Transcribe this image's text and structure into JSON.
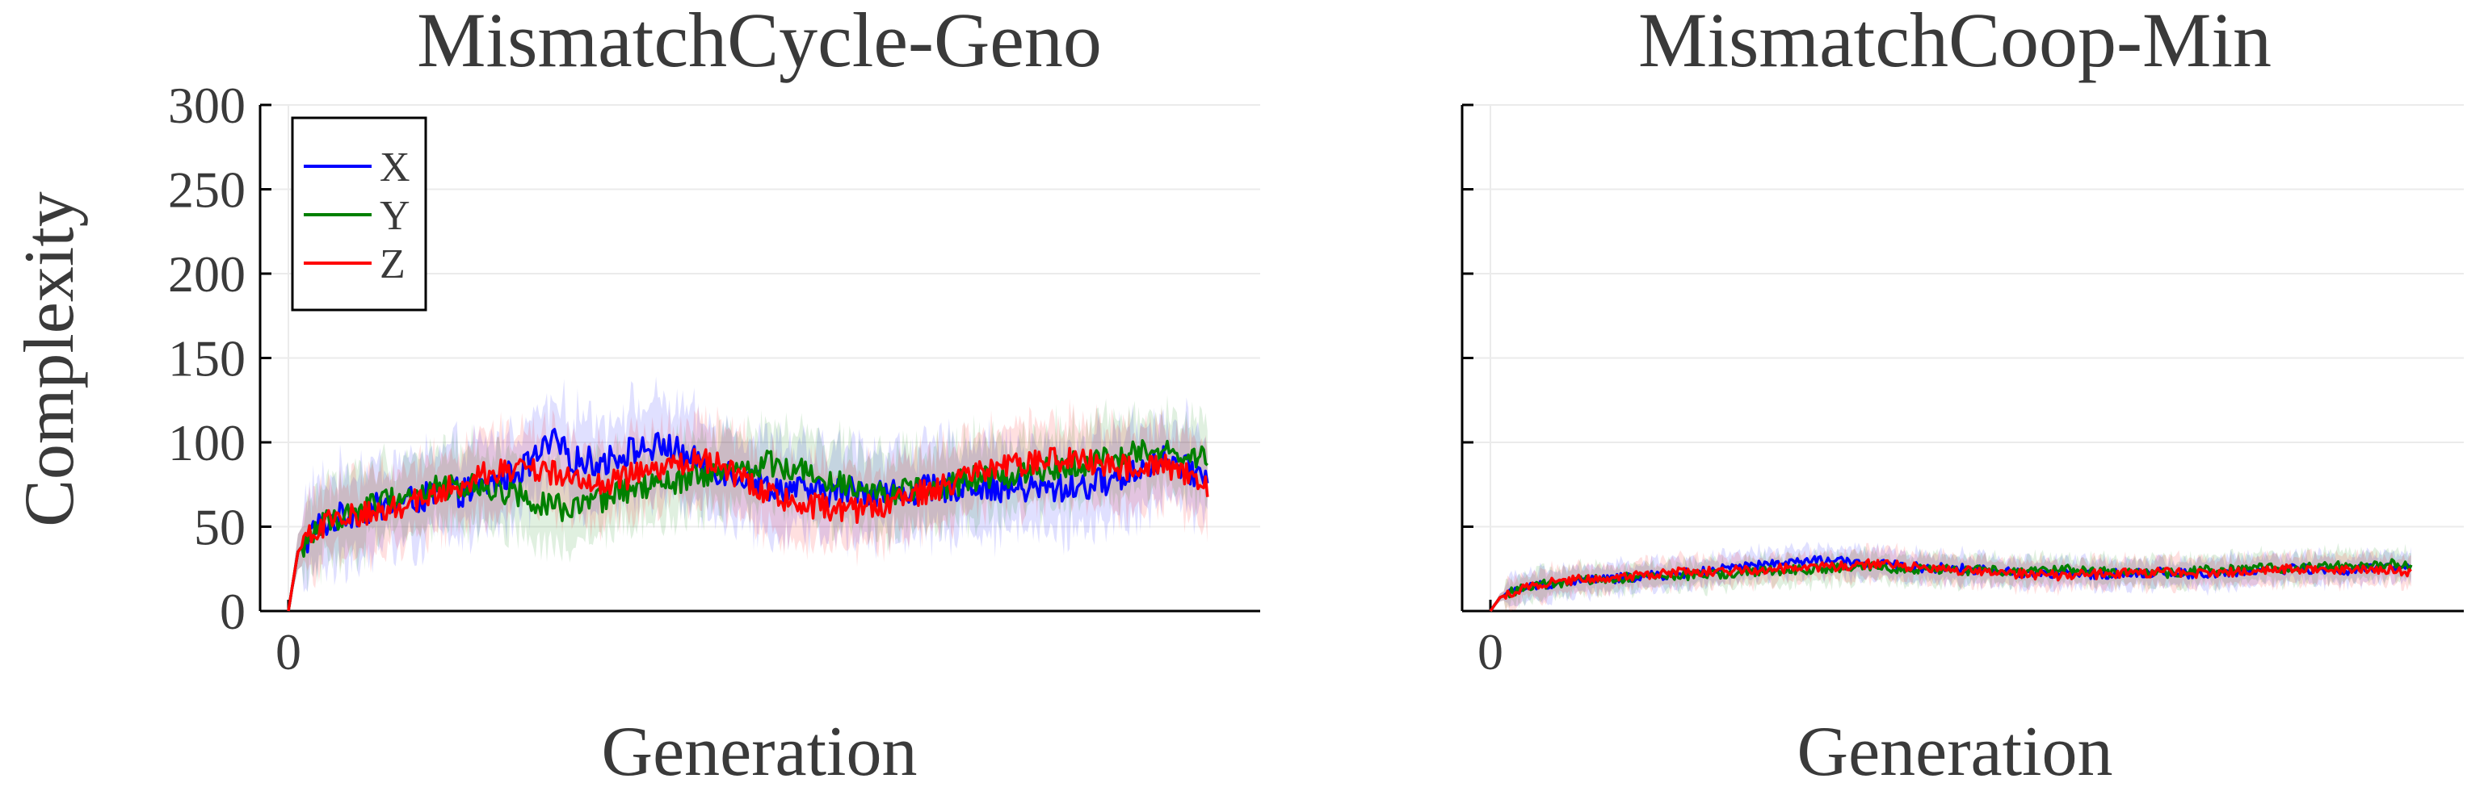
{
  "chart_data": [
    {
      "type": "line",
      "title": "MismatchCycle-Geno",
      "xlabel": "Generation",
      "ylabel": "Complexity",
      "xticks": [
        "0"
      ],
      "yticks": [
        0,
        50,
        100,
        150,
        200,
        250,
        300
      ],
      "xlim": [
        0,
        1000
      ],
      "ylim": [
        0,
        300
      ],
      "grid": true,
      "legend": "top-left",
      "series": [
        {
          "name": "X",
          "color": "#0000ff",
          "x": [
            0,
            10,
            30,
            60,
            100,
            150,
            200,
            250,
            280,
            300,
            330,
            360,
            400,
            440,
            470,
            500,
            530,
            560,
            600,
            640,
            680,
            720,
            760,
            800,
            840,
            880,
            920,
            940,
            970
          ],
          "y": [
            0,
            35,
            50,
            57,
            62,
            68,
            72,
            85,
            100,
            90,
            88,
            95,
            98,
            85,
            82,
            75,
            72,
            70,
            72,
            70,
            72,
            75,
            73,
            72,
            74,
            80,
            90,
            85,
            80
          ],
          "band": 25
        },
        {
          "name": "Y",
          "color": "#008000",
          "x": [
            0,
            10,
            30,
            60,
            100,
            150,
            200,
            250,
            280,
            300,
            330,
            360,
            400,
            440,
            470,
            500,
            530,
            560,
            600,
            640,
            680,
            720,
            760,
            800,
            840,
            880,
            920,
            940,
            970
          ],
          "y": [
            0,
            35,
            50,
            57,
            65,
            72,
            75,
            68,
            62,
            60,
            65,
            72,
            75,
            80,
            82,
            88,
            85,
            80,
            75,
            70,
            72,
            78,
            80,
            85,
            88,
            92,
            95,
            90,
            92
          ],
          "band": 22
        },
        {
          "name": "Z",
          "color": "#ff0000",
          "x": [
            0,
            10,
            30,
            60,
            100,
            150,
            200,
            250,
            280,
            300,
            330,
            360,
            400,
            440,
            470,
            500,
            530,
            560,
            600,
            640,
            680,
            720,
            760,
            800,
            840,
            880,
            920,
            940,
            970
          ],
          "y": [
            0,
            35,
            50,
            55,
            60,
            68,
            80,
            85,
            82,
            78,
            75,
            80,
            85,
            90,
            82,
            72,
            65,
            62,
            60,
            65,
            72,
            80,
            85,
            90,
            88,
            85,
            88,
            82,
            75
          ],
          "band": 22
        }
      ]
    },
    {
      "type": "line",
      "title": "MismatchCoop-Min",
      "xlabel": "Generation",
      "ylabel": "",
      "xticks": [
        "0"
      ],
      "yticks": [
        0,
        50,
        100,
        150,
        200,
        250,
        300
      ],
      "xlim": [
        0,
        1000
      ],
      "ylim": [
        0,
        300
      ],
      "grid": true,
      "series": [
        {
          "name": "X",
          "color": "#0000ff",
          "x": [
            0,
            10,
            30,
            60,
            100,
            150,
            200,
            250,
            300,
            350,
            400,
            450,
            500,
            550,
            600,
            650,
            700,
            750,
            800,
            850,
            900,
            950,
            970
          ],
          "y": [
            0,
            8,
            13,
            16,
            18,
            20,
            22,
            25,
            28,
            30,
            28,
            26,
            25,
            23,
            22,
            22,
            23,
            22,
            24,
            25,
            24,
            26,
            25
          ],
          "band": 8
        },
        {
          "name": "Y",
          "color": "#008000",
          "x": [
            0,
            10,
            30,
            60,
            100,
            150,
            200,
            250,
            300,
            350,
            400,
            450,
            500,
            550,
            600,
            650,
            700,
            750,
            800,
            850,
            900,
            950,
            970
          ],
          "y": [
            0,
            8,
            13,
            16,
            18,
            20,
            21,
            22,
            24,
            25,
            26,
            25,
            24,
            24,
            25,
            23,
            22,
            24,
            25,
            26,
            27,
            28,
            26
          ],
          "band": 8
        },
        {
          "name": "Z",
          "color": "#ff0000",
          "x": [
            0,
            10,
            30,
            60,
            100,
            150,
            200,
            250,
            300,
            350,
            400,
            450,
            500,
            550,
            600,
            650,
            700,
            750,
            800,
            850,
            900,
            950,
            970
          ],
          "y": [
            0,
            8,
            13,
            17,
            19,
            21,
            23,
            24,
            25,
            26,
            28,
            26,
            24,
            22,
            21,
            22,
            23,
            22,
            24,
            25,
            24,
            25,
            23
          ],
          "band": 8
        }
      ]
    }
  ]
}
